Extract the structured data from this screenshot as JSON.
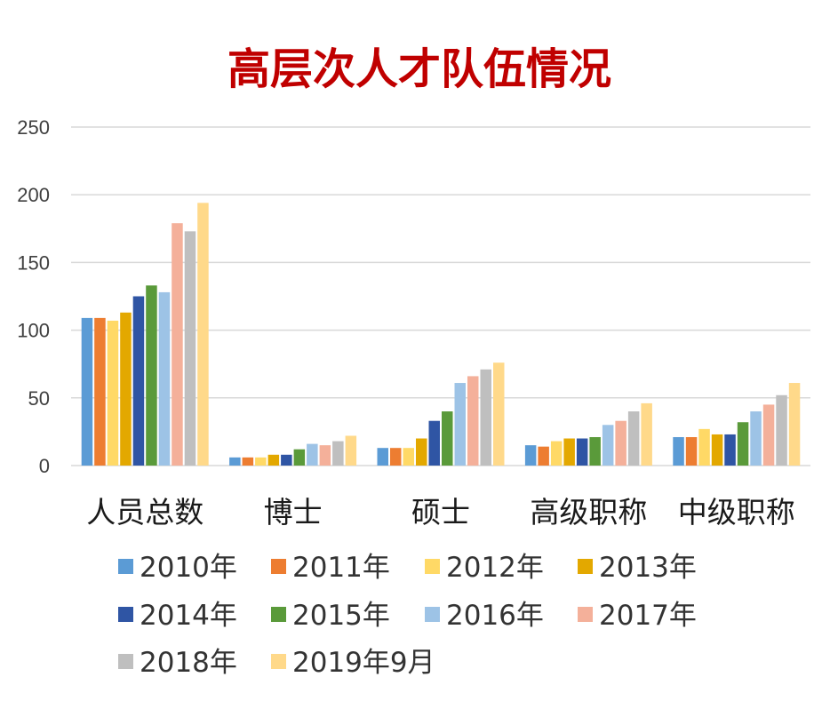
{
  "chart_data": {
    "type": "bar",
    "title": "高层次人才队伍情况",
    "categories": [
      "人员总数",
      "博士",
      "硕士",
      "高级职称",
      "中级职称"
    ],
    "ylim": [
      0,
      250
    ],
    "yticks": [
      0,
      50,
      100,
      150,
      200,
      250
    ],
    "grid": true,
    "legend_position": "bottom",
    "series": [
      {
        "name": "2010年",
        "color": "#5B9BD5",
        "values": [
          109,
          6,
          13,
          15,
          21
        ]
      },
      {
        "name": "2011年",
        "color": "#ED7D31",
        "values": [
          109,
          6,
          13,
          14,
          21
        ]
      },
      {
        "name": "2012年",
        "color": "#FFD966",
        "values": [
          107,
          6,
          13,
          18,
          27
        ]
      },
      {
        "name": "2013年",
        "color": "#E3A800",
        "values": [
          113,
          8,
          20,
          20,
          23
        ]
      },
      {
        "name": "2014年",
        "color": "#2F55A4",
        "values": [
          125,
          8,
          33,
          20,
          23
        ]
      },
      {
        "name": "2015年",
        "color": "#5A9A3A",
        "values": [
          133,
          12,
          40,
          21,
          32
        ]
      },
      {
        "name": "2016年",
        "color": "#9DC3E6",
        "values": [
          128,
          16,
          61,
          30,
          40
        ]
      },
      {
        "name": "2017年",
        "color": "#F4B09A",
        "values": [
          179,
          15,
          66,
          33,
          45
        ]
      },
      {
        "name": "2018年",
        "color": "#BFBFBF",
        "values": [
          173,
          18,
          71,
          40,
          52
        ]
      },
      {
        "name": "2019年9月",
        "color": "#FFD98A",
        "values": [
          194,
          22,
          76,
          46,
          61
        ]
      }
    ]
  },
  "colors": {
    "title": "#C00000",
    "grid": "#D9D9D9",
    "axis_text": "#404040",
    "category_text": "#1A1A1A",
    "legend_text": "#333333"
  }
}
